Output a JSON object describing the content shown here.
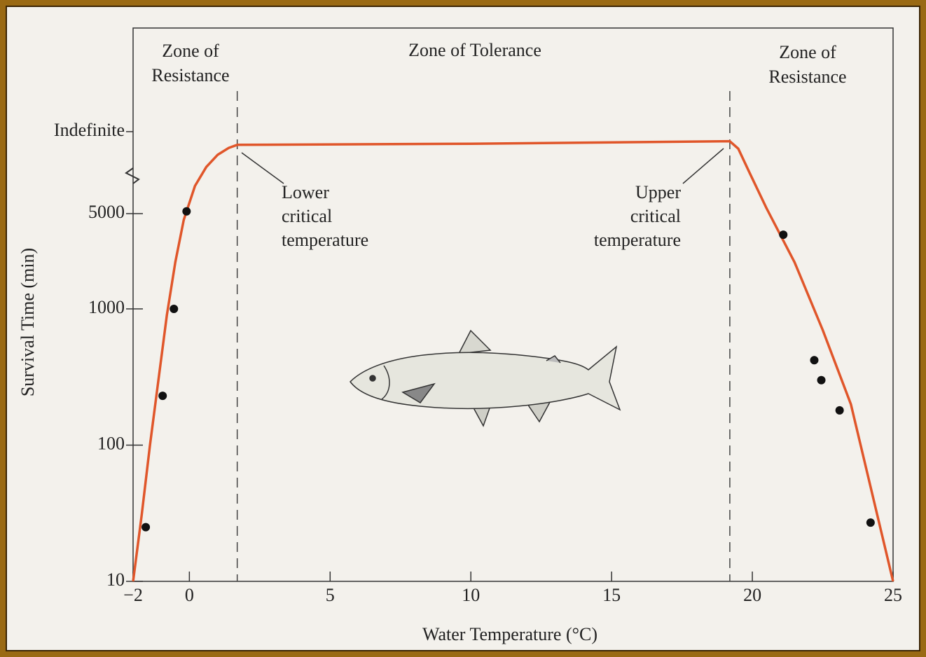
{
  "chart_data": {
    "type": "scatter",
    "x_label": "Water Temperature (°C)",
    "y_label": "Survival Time (min)",
    "xlim": [
      -2,
      25
    ],
    "xticks": [
      {
        "value": -2,
        "label": "−2"
      },
      0,
      5,
      10,
      15,
      20,
      25
    ],
    "ylim": [
      10,
      100000
    ],
    "yticks": [
      10,
      100,
      1000,
      5000,
      {
        "value": 20000,
        "label": "Indefinite"
      }
    ],
    "log_y": true,
    "zones": [
      [
        "Zone of",
        "Resistance"
      ],
      [
        "Zone of Tolerance"
      ],
      [
        "Zone of",
        "Resistance"
      ]
    ],
    "critical_x": [
      1.7,
      19.2
    ],
    "annotations": [
      [
        "Lower",
        "critical",
        "temperature"
      ],
      [
        "Upper",
        "critical",
        "temperature"
      ]
    ],
    "series": [
      {
        "type": "line",
        "color": "#e0562a",
        "x": [
          -2,
          -1.7,
          -1.4,
          -1.1,
          -0.8,
          -0.5,
          -0.2,
          0.2,
          0.6,
          1.0,
          1.4,
          1.7,
          10,
          19.2,
          19.5,
          19.9,
          20.5,
          21.5,
          22.5,
          23.5,
          25
        ],
        "values": [
          10,
          30,
          100,
          300,
          900,
          2200,
          4500,
          8000,
          11000,
          13500,
          15200,
          16000,
          16300,
          17000,
          15000,
          10000,
          5500,
          2200,
          700,
          200,
          10
        ]
      },
      {
        "type": "scatter",
        "color": "#111111",
        "x": [
          -1.55,
          -0.95,
          -0.55,
          -0.1,
          21.1,
          22.2,
          22.45,
          23.1,
          24.2
        ],
        "values": [
          25,
          230,
          1000,
          5200,
          3500,
          420,
          300,
          180,
          27
        ]
      }
    ]
  }
}
